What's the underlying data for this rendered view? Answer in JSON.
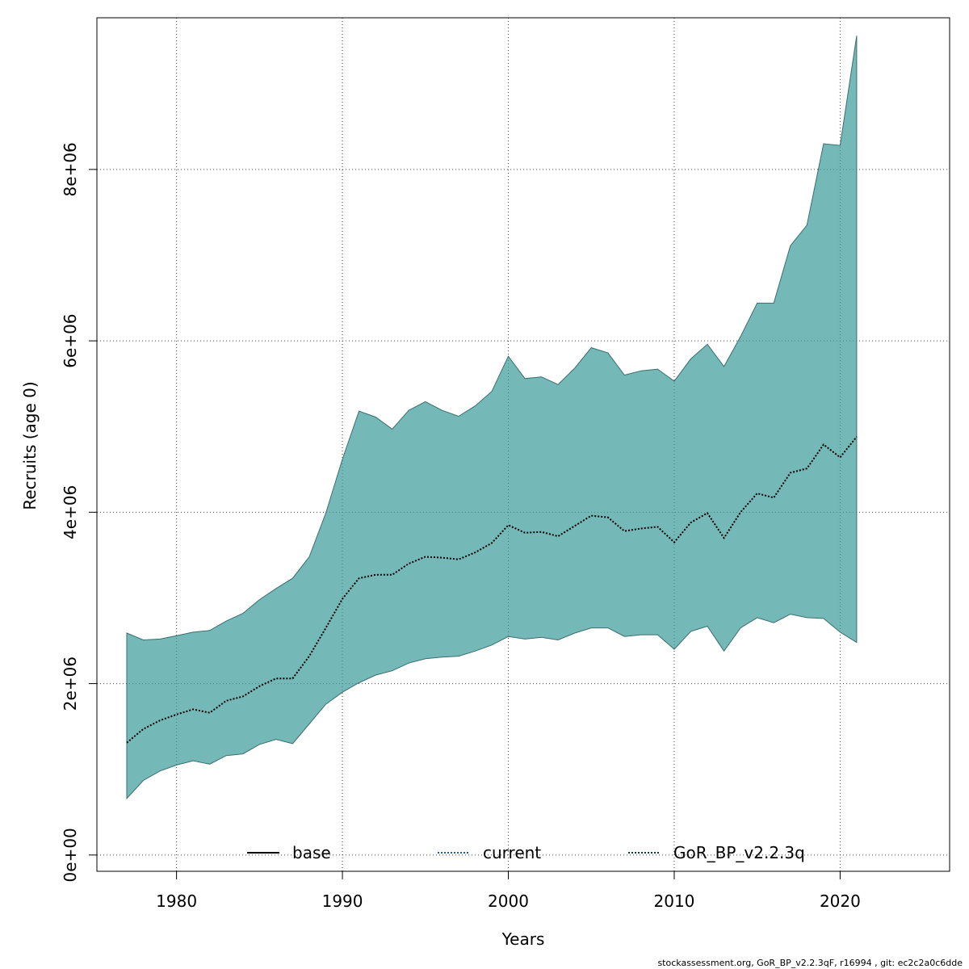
{
  "chart_data": {
    "type": "area",
    "xlabel": "Years",
    "ylabel": "Recruits (age 0)",
    "xlim": [
      1975.2,
      2026.6
    ],
    "ylim": [
      -190000,
      9770000
    ],
    "x_ticks": [
      1980,
      1990,
      2000,
      2010,
      2020
    ],
    "x_tick_labels": [
      "1980",
      "1990",
      "2000",
      "2010",
      "2020"
    ],
    "y_ticks": [
      0,
      2000000,
      4000000,
      6000000,
      8000000
    ],
    "y_tick_labels": [
      "0e+00",
      "2e+06",
      "4e+06",
      "6e+06",
      "8e+06"
    ],
    "grid": true,
    "x": [
      1977,
      1978,
      1979,
      1980,
      1981,
      1982,
      1983,
      1984,
      1985,
      1986,
      1987,
      1988,
      1989,
      1990,
      1991,
      1992,
      1993,
      1994,
      1995,
      1996,
      1997,
      1998,
      1999,
      2000,
      2001,
      2002,
      2003,
      2004,
      2005,
      2006,
      2007,
      2008,
      2009,
      2010,
      2011,
      2012,
      2013,
      2014,
      2015,
      2016,
      2017,
      2018,
      2019,
      2020,
      2021
    ],
    "series": [
      {
        "name": "GoR_BP_v2.2.3q",
        "line_style": "dotted",
        "values": [
          1310000,
          1470000,
          1570000,
          1640000,
          1700000,
          1660000,
          1800000,
          1850000,
          1970000,
          2060000,
          2060000,
          2320000,
          2650000,
          2990000,
          3230000,
          3270000,
          3270000,
          3400000,
          3480000,
          3470000,
          3450000,
          3530000,
          3640000,
          3850000,
          3760000,
          3770000,
          3720000,
          3840000,
          3960000,
          3940000,
          3780000,
          3810000,
          3830000,
          3650000,
          3880000,
          3990000,
          3700000,
          4000000,
          4220000,
          4170000,
          4460000,
          4510000,
          4790000,
          4640000,
          4880000
        ],
        "lower": [
          660000,
          870000,
          980000,
          1050000,
          1100000,
          1060000,
          1160000,
          1180000,
          1290000,
          1350000,
          1300000,
          1530000,
          1760000,
          1900000,
          2010000,
          2100000,
          2150000,
          2240000,
          2290000,
          2310000,
          2320000,
          2380000,
          2450000,
          2550000,
          2520000,
          2540000,
          2510000,
          2590000,
          2650000,
          2650000,
          2550000,
          2570000,
          2570000,
          2400000,
          2610000,
          2670000,
          2380000,
          2650000,
          2770000,
          2710000,
          2810000,
          2770000,
          2760000,
          2600000,
          2480000
        ],
        "upper": [
          2590000,
          2510000,
          2520000,
          2560000,
          2600000,
          2620000,
          2730000,
          2820000,
          2980000,
          3110000,
          3230000,
          3480000,
          3990000,
          4620000,
          5180000,
          5110000,
          4970000,
          5190000,
          5290000,
          5190000,
          5120000,
          5240000,
          5410000,
          5820000,
          5560000,
          5580000,
          5490000,
          5680000,
          5920000,
          5860000,
          5600000,
          5650000,
          5670000,
          5530000,
          5790000,
          5960000,
          5700000,
          6050000,
          6440000,
          6440000,
          7110000,
          7350000,
          8300000,
          8280000,
          9560000
        ]
      }
    ],
    "band_color": "#3f9c9c",
    "band_opacity": 0.72,
    "line_color": "#000000",
    "legend": {
      "placement": "bottom",
      "entries": [
        {
          "label": "base",
          "style": "solid",
          "color": "#000000"
        },
        {
          "label": "current",
          "style": "dotted",
          "color": "#1f5fa8"
        },
        {
          "label": "GoR_BP_v2.2.3q",
          "style": "dotted",
          "color": "#0f3a3a"
        }
      ]
    }
  },
  "footer": "stockassessment.org, GoR_BP_v2.2.3qF, r16994 , git: ec2c2a0c6dde"
}
